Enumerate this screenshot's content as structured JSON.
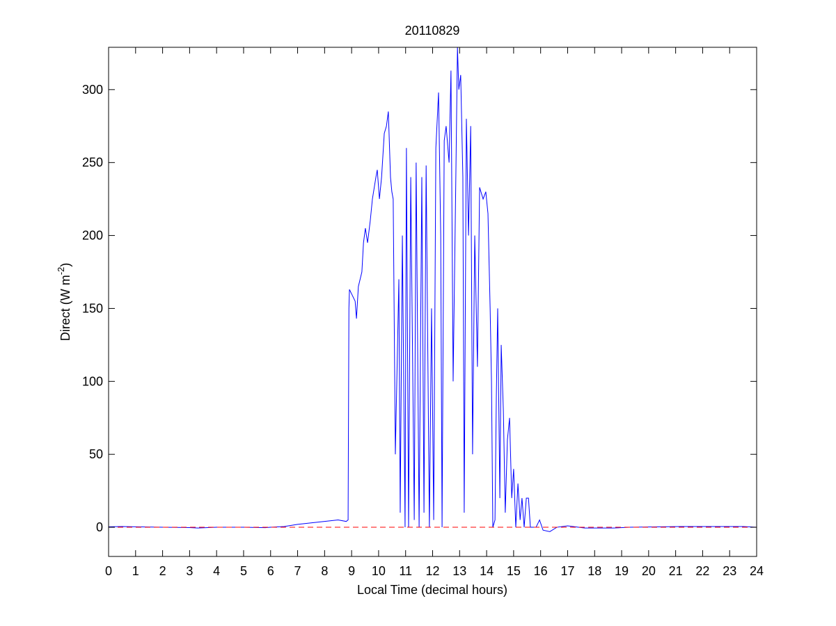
{
  "chart_data": {
    "type": "line",
    "title": "20110829",
    "xlabel": "Local Time (decimal hours)",
    "ylabel_parts": [
      "Direct (W m",
      "-2",
      ")"
    ],
    "xlim": [
      0,
      24
    ],
    "ylim": [
      -20,
      329
    ],
    "xticks": [
      0,
      1,
      2,
      3,
      4,
      5,
      6,
      7,
      8,
      9,
      10,
      11,
      12,
      13,
      14,
      15,
      16,
      17,
      18,
      19,
      20,
      21,
      22,
      23,
      24
    ],
    "yticks": [
      0,
      50,
      100,
      150,
      200,
      250,
      300
    ],
    "series": [
      {
        "color": "#0000ff",
        "linestyle": "solid",
        "x": [
          0,
          0.5,
          1,
          2,
          3,
          3.3,
          4,
          5,
          5.8,
          6,
          6.5,
          7,
          7.5,
          8,
          8.5,
          8.8,
          8.87,
          8.9,
          8.92,
          9.13,
          9.18,
          9.25,
          9.38,
          9.44,
          9.51,
          9.59,
          9.69,
          9.77,
          9.9,
          9.95,
          10.03,
          10.11,
          10.21,
          10.29,
          10.36,
          10.44,
          10.49,
          10.54,
          10.62,
          10.75,
          10.8,
          10.88,
          10.98,
          11.03,
          11.11,
          11.19,
          11.32,
          11.39,
          11.5,
          11.6,
          11.68,
          11.76,
          11.88,
          11.96,
          12.04,
          12.12,
          12.22,
          12.3,
          12.35,
          12.43,
          12.5,
          12.61,
          12.68,
          12.76,
          12.86,
          12.92,
          12.97,
          13.04,
          13.12,
          13.17,
          13.25,
          13.33,
          13.41,
          13.48,
          13.56,
          13.66,
          13.74,
          13.87,
          13.97,
          14.05,
          14.13,
          14.18,
          14.23,
          14.31,
          14.36,
          14.41,
          14.49,
          14.54,
          14.62,
          14.69,
          14.77,
          14.85,
          14.93,
          15,
          15.08,
          15.16,
          15.24,
          15.31,
          15.39,
          15.47,
          15.55,
          15.62,
          15.83,
          15.96,
          16.09,
          16.34,
          16.6,
          17,
          17.63,
          18.7,
          19.3,
          21.2,
          23.5,
          24
        ],
        "values": [
          0.3,
          0.5,
          0.3,
          0,
          -0.2,
          -0.5,
          0,
          0,
          -0.3,
          0,
          0.5,
          2,
          3,
          4,
          5,
          4,
          5,
          150,
          163,
          155,
          143,
          165,
          175,
          195,
          205,
          195,
          210,
          225,
          240,
          245,
          225,
          240,
          270,
          275,
          285,
          240,
          230,
          225,
          50,
          170,
          10,
          200,
          0,
          260,
          0,
          240,
          5,
          250,
          0,
          240,
          10,
          248,
          0,
          150,
          5,
          260,
          298,
          200,
          0,
          265,
          275,
          250,
          313,
          100,
          240,
          329,
          300,
          310,
          240,
          10,
          280,
          200,
          275,
          50,
          200,
          110,
          233,
          225,
          230,
          215,
          150,
          100,
          0,
          5,
          90,
          150,
          20,
          125,
          80,
          10,
          60,
          75,
          20,
          40,
          0,
          30,
          5,
          20,
          0,
          20,
          20,
          0,
          0,
          5,
          -2,
          -3,
          0,
          1,
          -0.5,
          -0.5,
          0,
          0.5,
          0.5,
          0
        ]
      },
      {
        "color": "#ff0000",
        "linestyle": "dashed",
        "x": [
          0,
          24
        ],
        "values": [
          0,
          0
        ]
      }
    ]
  }
}
